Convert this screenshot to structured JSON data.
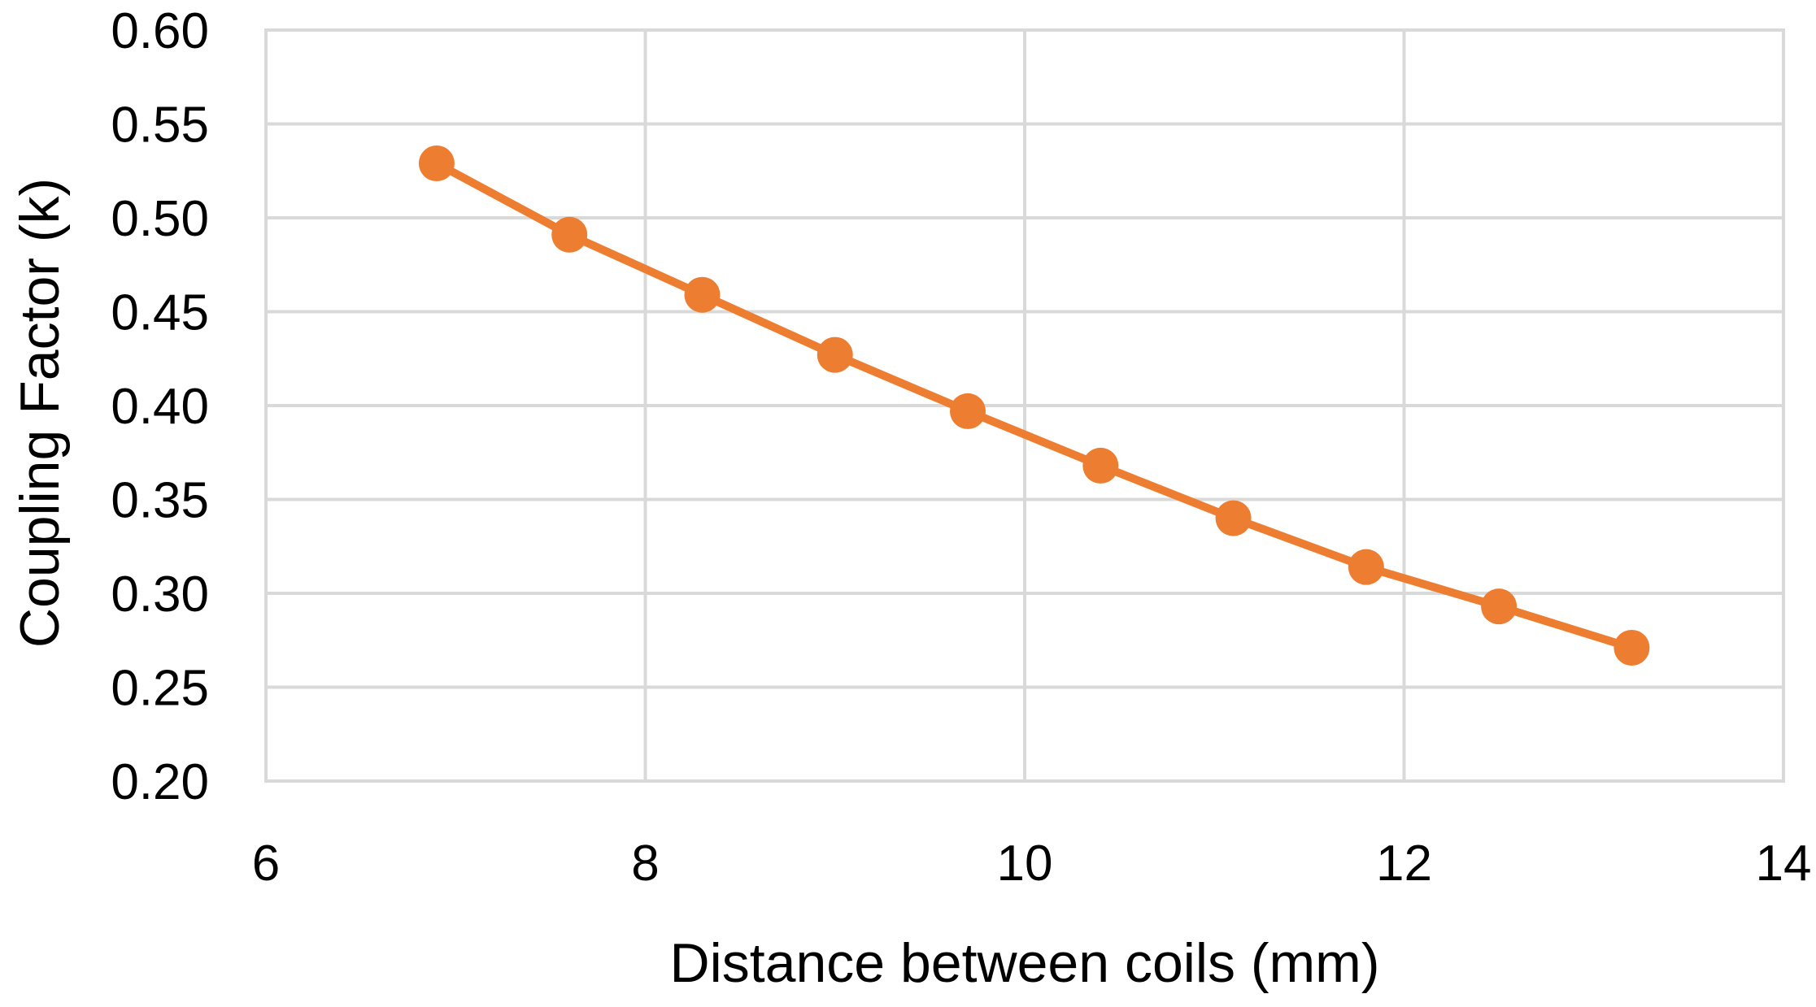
{
  "chart_data": {
    "type": "line",
    "title": "",
    "xlabel": "Distance between coils (mm)",
    "ylabel": "Coupling Factor (k)",
    "xlim": [
      6,
      14
    ],
    "ylim": [
      0.2,
      0.6
    ],
    "x_ticks": [
      "6",
      "8",
      "10",
      "12",
      "14"
    ],
    "y_ticks": [
      "0.20",
      "0.25",
      "0.30",
      "0.35",
      "0.40",
      "0.45",
      "0.50",
      "0.55",
      "0.60"
    ],
    "grid": true,
    "legend": "none",
    "series": [
      {
        "color": "#ED7D31",
        "marker": "circle",
        "x": [
          6.9,
          7.6,
          8.3,
          9.0,
          9.7,
          10.4,
          11.1,
          11.8,
          12.5,
          13.2
        ],
        "y": [
          0.529,
          0.491,
          0.459,
          0.427,
          0.397,
          0.368,
          0.34,
          0.314,
          0.293,
          0.271
        ]
      }
    ]
  }
}
